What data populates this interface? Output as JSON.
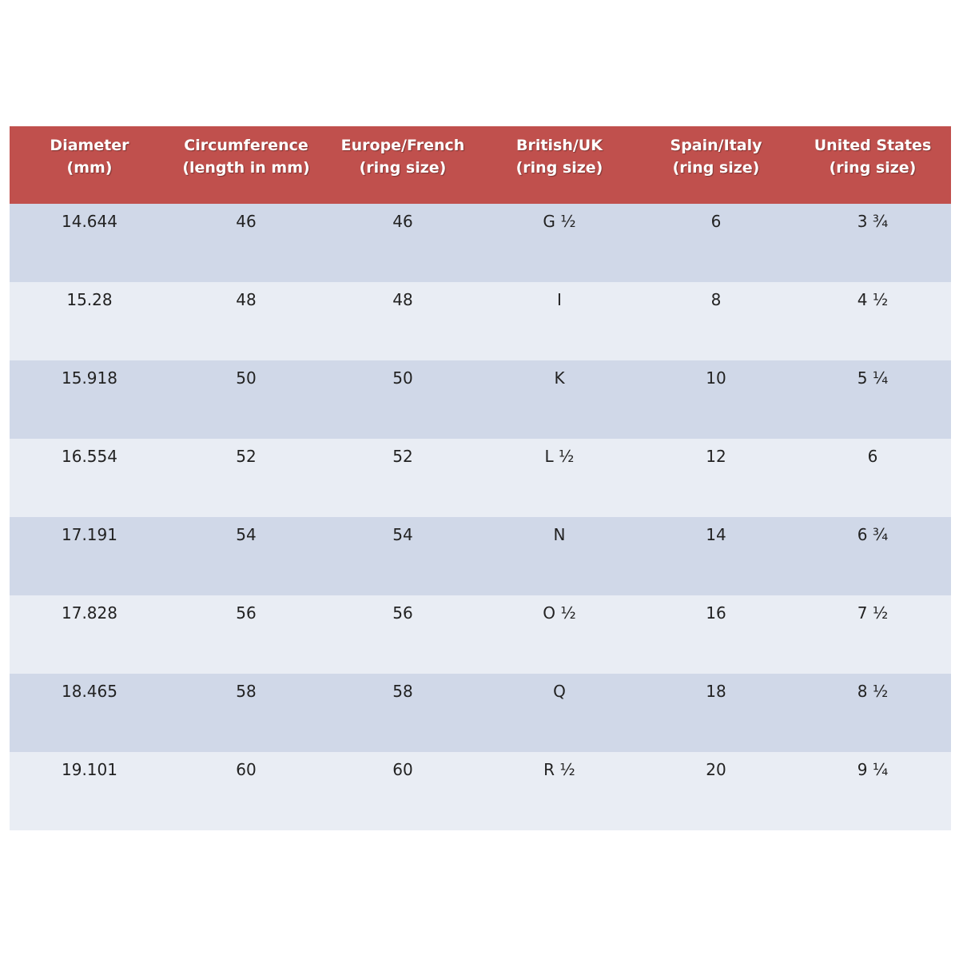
{
  "table": {
    "header": [
      [
        "Diameter",
        "(mm)"
      ],
      [
        "Circumference",
        "(length in mm)"
      ],
      [
        "Europe/French",
        "(ring size)"
      ],
      [
        "British/UK",
        "(ring size)"
      ],
      [
        "Spain/Italy",
        "(ring size)"
      ],
      [
        "United States",
        "(ring size)"
      ]
    ],
    "rows": [
      [
        "14.644",
        "46",
        "46",
        "G ½",
        "6",
        "3 ¾"
      ],
      [
        "15.28",
        "48",
        "48",
        "I",
        "8",
        "4 ½"
      ],
      [
        "15.918",
        "50",
        "50",
        "K",
        "10",
        "5 ¼"
      ],
      [
        "16.554",
        "52",
        "52",
        "L ½",
        "12",
        "6"
      ],
      [
        "17.191",
        "54",
        "54",
        "N",
        "14",
        "6 ¾"
      ],
      [
        "17.828",
        "56",
        "56",
        "O ½",
        "16",
        "7 ½"
      ],
      [
        "18.465",
        "58",
        "58",
        "Q",
        "18",
        "8 ½"
      ],
      [
        "19.101",
        "60",
        "60",
        "R ½",
        "20",
        "9 ¼"
      ]
    ]
  }
}
